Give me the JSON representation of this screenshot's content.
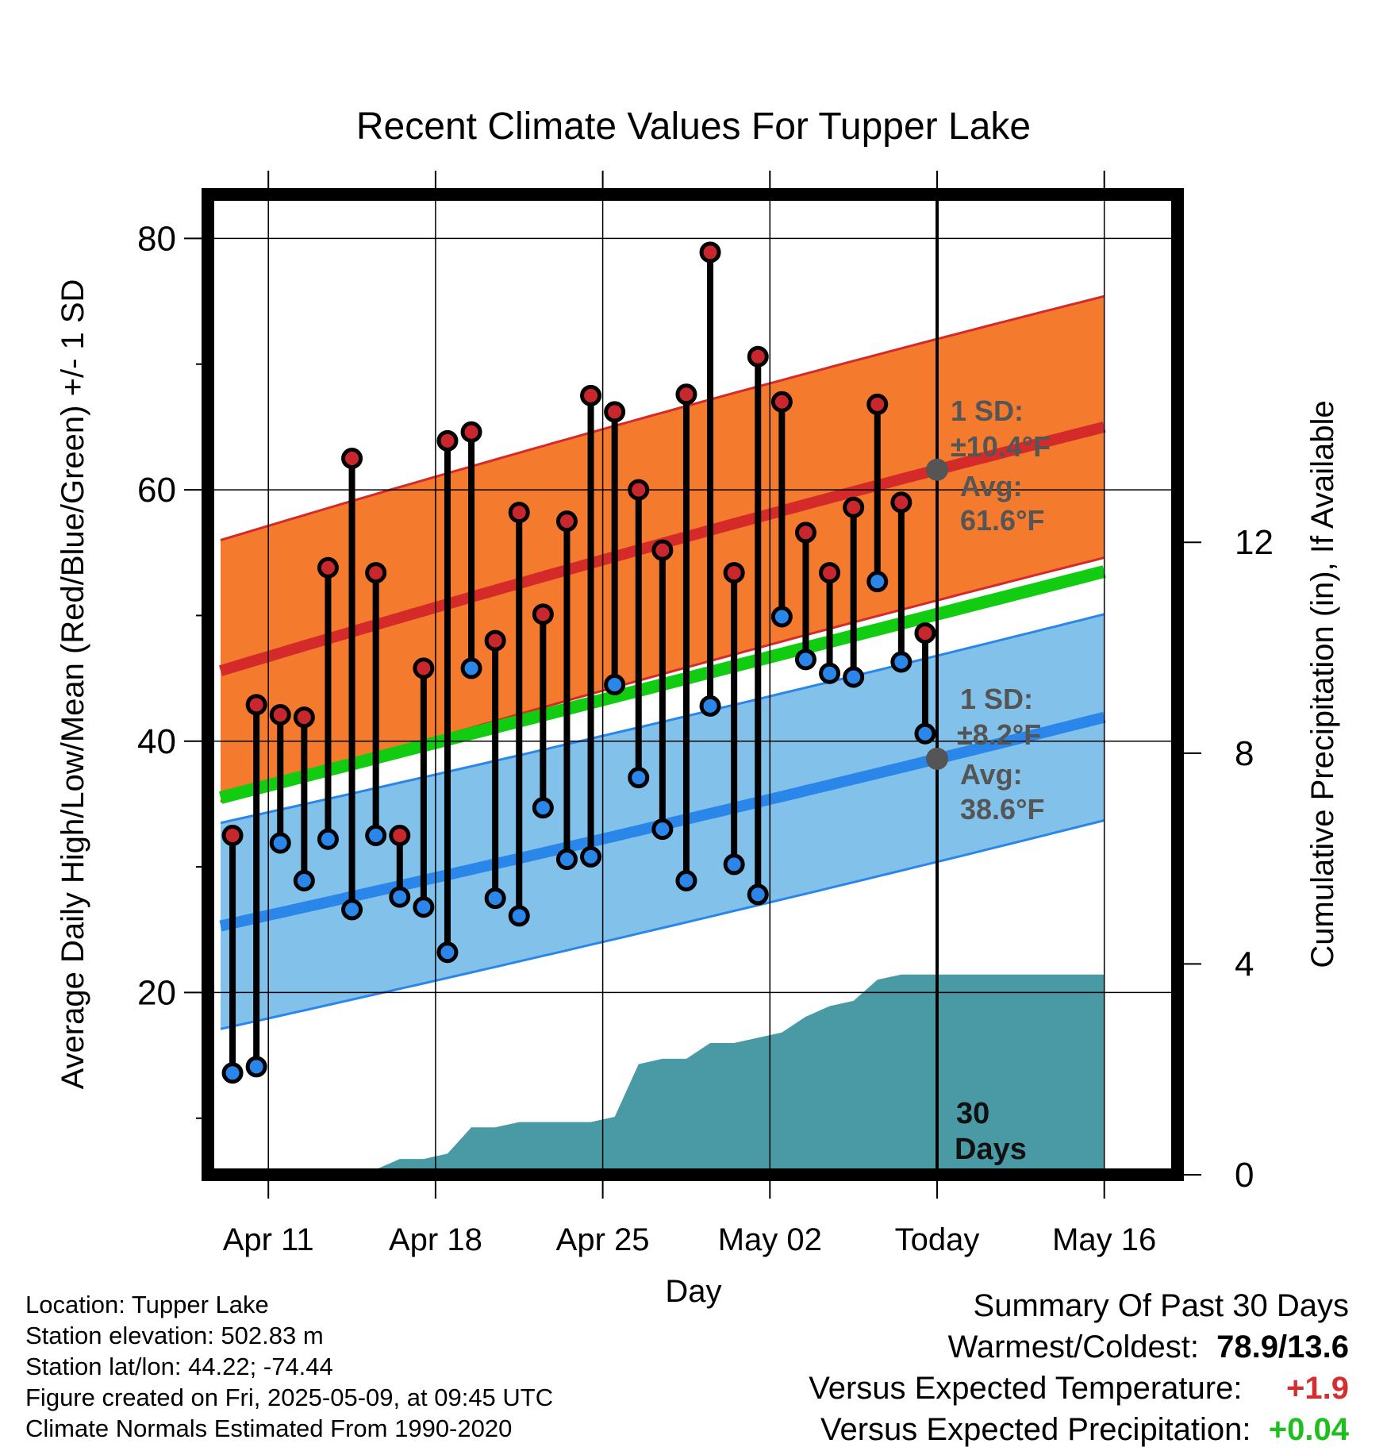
{
  "chart_data": {
    "type": "line",
    "title": "Recent Climate Values For Tupper Lake",
    "xlabel": "Day",
    "ylabel": "Average Daily High/Low/Mean (Red/Blue/Green) +/- 1 SD",
    "ylabel_right": "Cumulative Precipitation (in), If Available",
    "ylim": [
      5.5,
      83.5
    ],
    "ylim_right": [
      0,
      18.6
    ],
    "y_ticks": [
      "20",
      "40",
      "60",
      "80"
    ],
    "y_ticks_right": [
      "0",
      "4",
      "8",
      "12"
    ],
    "x_tick_labels": [
      "Apr 11",
      "Apr 18",
      "Apr 25",
      "May 02",
      "Today",
      "May 16"
    ],
    "grid": true,
    "days": [
      "Apr 09",
      "Apr 10",
      "Apr 11",
      "Apr 12",
      "Apr 13",
      "Apr 14",
      "Apr 15",
      "Apr 16",
      "Apr 17",
      "Apr 18",
      "Apr 19",
      "Apr 20",
      "Apr 21",
      "Apr 22",
      "Apr 23",
      "Apr 24",
      "Apr 25",
      "Apr 26",
      "Apr 27",
      "Apr 28",
      "Apr 29",
      "Apr 30",
      "May 01",
      "May 02",
      "May 03",
      "May 04",
      "May 05",
      "May 06",
      "May 07",
      "May 08"
    ],
    "series": [
      {
        "name": "High",
        "color": "#c8282d",
        "values": [
          32.5,
          42.9,
          42.1,
          41.9,
          53.8,
          62.5,
          53.4,
          32.5,
          45.8,
          63.9,
          64.6,
          48.0,
          58.2,
          50.1,
          57.5,
          67.5,
          66.2,
          60.0,
          55.2,
          67.6,
          78.9,
          53.4,
          70.6,
          67.0,
          56.6,
          53.4,
          58.6,
          66.8,
          59.0,
          48.6
        ]
      },
      {
        "name": "Low",
        "color": "#2a86e8",
        "values": [
          13.6,
          14.1,
          31.9,
          28.9,
          32.2,
          26.6,
          32.5,
          27.6,
          26.8,
          23.2,
          45.8,
          27.5,
          26.1,
          34.7,
          30.6,
          30.8,
          44.5,
          37.1,
          33.0,
          28.9,
          42.8,
          30.2,
          27.8,
          49.9,
          46.5,
          45.4,
          45.1,
          52.7,
          46.3,
          40.6
        ]
      }
    ],
    "normals": {
      "high_avg": [
        45.6,
        61.6,
        65.0
      ],
      "high_sd": 10.4,
      "low_avg": [
        25.3,
        38.6,
        41.9
      ],
      "low_sd": 8.2,
      "mean_avg": [
        35.5,
        50.1,
        53.5
      ],
      "days_at": [
        -0.5,
        29.5,
        36.5
      ]
    },
    "today_annotations": {
      "high_sd_label": "1 SD:",
      "high_sd_value": "±10.4°F",
      "high_avg_label": "Avg:",
      "high_avg_value": "61.6°F",
      "low_sd_label": "1 SD:",
      "low_sd_value": "±8.2°F",
      "low_avg_label": "Avg:",
      "low_avg_value": "38.6°F",
      "period_label": "30",
      "period_label2": "Days"
    },
    "precipitation": {
      "name": "Cumulative Precipitation",
      "color": "#4a9aa5",
      "values": [
        0.0,
        0.0,
        0.0,
        0.0,
        0.0,
        0.0,
        0.1,
        0.3,
        0.3,
        0.4,
        0.9,
        0.9,
        1.0,
        1.0,
        1.0,
        1.0,
        1.1,
        2.1,
        2.2,
        2.2,
        2.5,
        2.5,
        2.6,
        2.7,
        3.0,
        3.2,
        3.3,
        3.7,
        3.8,
        3.8
      ]
    }
  },
  "station": {
    "location": "Location: Tupper Lake",
    "elevation": "Station elevation: 502.83 m",
    "latlon": "Station lat/lon: 44.22; -74.44",
    "created": "Figure created on Fri, 2025-05-09, at 09:45 UTC",
    "normals": "Climate Normals Estimated From 1990-2020"
  },
  "summary": {
    "title": "Summary Of Past 30 Days",
    "warmest_label": "Warmest/Coldest:",
    "warmest_value": "78.9/13.6",
    "temp_label": "Versus Expected Temperature:",
    "temp_value": "+1.9",
    "temp_color": "#d32f2f",
    "precip_label": "Versus Expected Precipitation:",
    "precip_value": "+0.04",
    "precip_color": "#1fbf1f"
  }
}
